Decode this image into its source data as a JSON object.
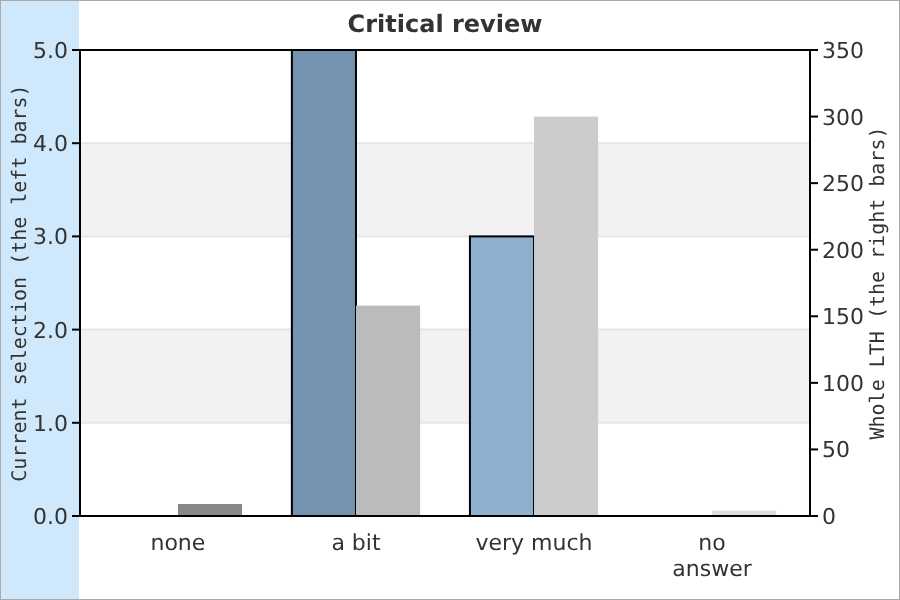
{
  "chart_data": {
    "type": "bar",
    "title": "Critical review",
    "ylabel": "Current selection (the left bars)",
    "y2label": "Whole LTH (the right bars)",
    "categories": [
      "none",
      "a bit",
      "very much",
      "no\nanswer"
    ],
    "series": [
      {
        "colors": [
          "#7393b0",
          "#7393b0",
          "#8fafcf",
          "#8fafcf"
        ],
        "values": [
          0,
          5.0,
          3.0,
          0
        ]
      },
      {
        "axis": "y2",
        "colors": [
          "#888888",
          "#bbbbbb",
          "#cccccc",
          "#dddddd"
        ],
        "values": [
          9,
          158,
          300,
          4
        ]
      }
    ],
    "ylim": [
      0,
      5
    ],
    "yticks": [
      {
        "value": 0,
        "label": "0.0"
      },
      {
        "value": 1,
        "label": "1.0"
      },
      {
        "value": 2,
        "label": "2.0"
      },
      {
        "value": 3,
        "label": "3.0"
      },
      {
        "value": 4,
        "label": "4.0"
      },
      {
        "value": 5,
        "label": "5.0"
      }
    ],
    "y2lim": [
      0,
      350
    ],
    "y2ticks": [
      0,
      50,
      100,
      150,
      200,
      250,
      300,
      350
    ],
    "grid": "y"
  }
}
